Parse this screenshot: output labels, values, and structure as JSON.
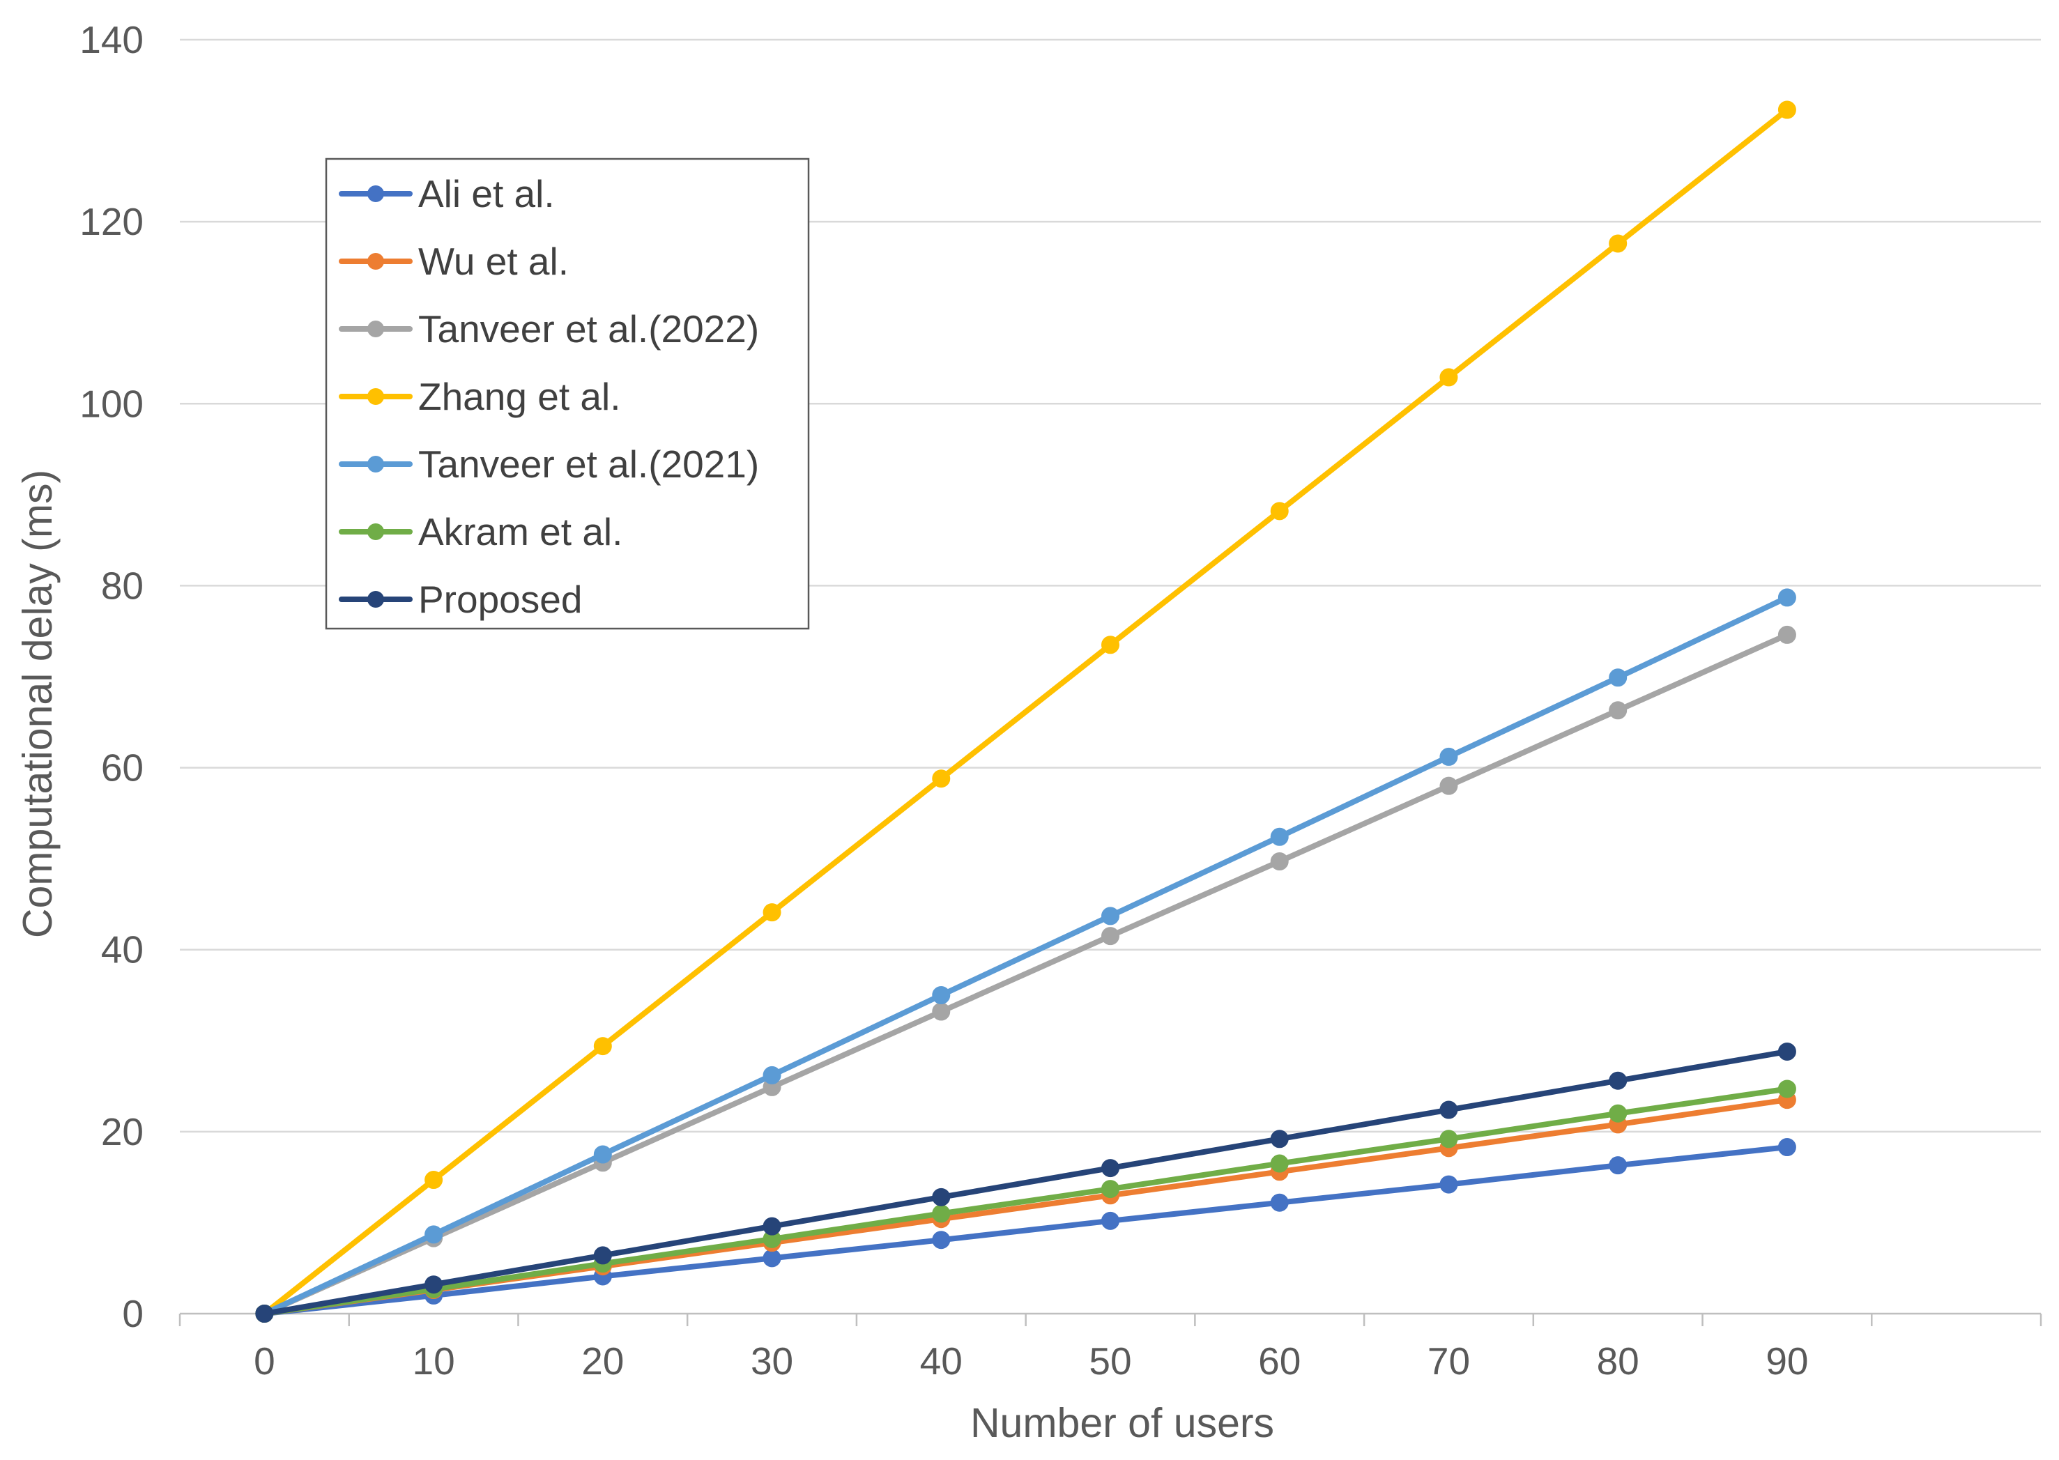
{
  "chart_data": {
    "type": "line",
    "title": "",
    "xlabel": "Number of users",
    "ylabel": "Computational delay (ms)",
    "x": [
      0,
      10,
      20,
      30,
      40,
      50,
      60,
      70,
      80,
      90
    ],
    "x_ticks": [
      "0",
      "10",
      "20",
      "30",
      "40",
      "50",
      "60",
      "70",
      "80",
      "90"
    ],
    "y_ticks": [
      "0",
      "20",
      "40",
      "60",
      "80",
      "100",
      "120",
      "140"
    ],
    "xlim": [
      -5,
      105
    ],
    "ylim": [
      0,
      140
    ],
    "grid": "horizontal",
    "legend_position": "top-left",
    "series": [
      {
        "name": "Ali et al.",
        "color": "#4472C4",
        "values": [
          0,
          2.0,
          4.1,
          6.1,
          8.1,
          10.2,
          12.2,
          14.2,
          16.3,
          18.3
        ]
      },
      {
        "name": "Wu et al.",
        "color": "#ED7D31",
        "values": [
          0,
          2.6,
          5.2,
          7.8,
          10.4,
          13.0,
          15.6,
          18.2,
          20.8,
          23.5
        ]
      },
      {
        "name": "Tanveer et al.(2022)",
        "color": "#A5A5A5",
        "values": [
          0,
          8.3,
          16.6,
          24.9,
          33.2,
          41.5,
          49.7,
          58.0,
          66.3,
          74.6
        ]
      },
      {
        "name": "Zhang et al.",
        "color": "#FFC000",
        "values": [
          0,
          14.7,
          29.4,
          44.1,
          58.8,
          73.5,
          88.2,
          102.9,
          117.6,
          132.3
        ]
      },
      {
        "name": "Tanveer et al.(2021)",
        "color": "#5B9BD5",
        "values": [
          0,
          8.7,
          17.5,
          26.2,
          35.0,
          43.7,
          52.4,
          61.2,
          69.9,
          78.7
        ]
      },
      {
        "name": "Akram et al.",
        "color": "#70AD47",
        "values": [
          0,
          2.7,
          5.5,
          8.2,
          11.0,
          13.7,
          16.5,
          19.2,
          22.0,
          24.7
        ]
      },
      {
        "name": "Proposed",
        "color": "#264478",
        "values": [
          0,
          3.2,
          6.4,
          9.6,
          12.8,
          16.0,
          19.2,
          22.4,
          25.6,
          28.8
        ]
      }
    ]
  }
}
